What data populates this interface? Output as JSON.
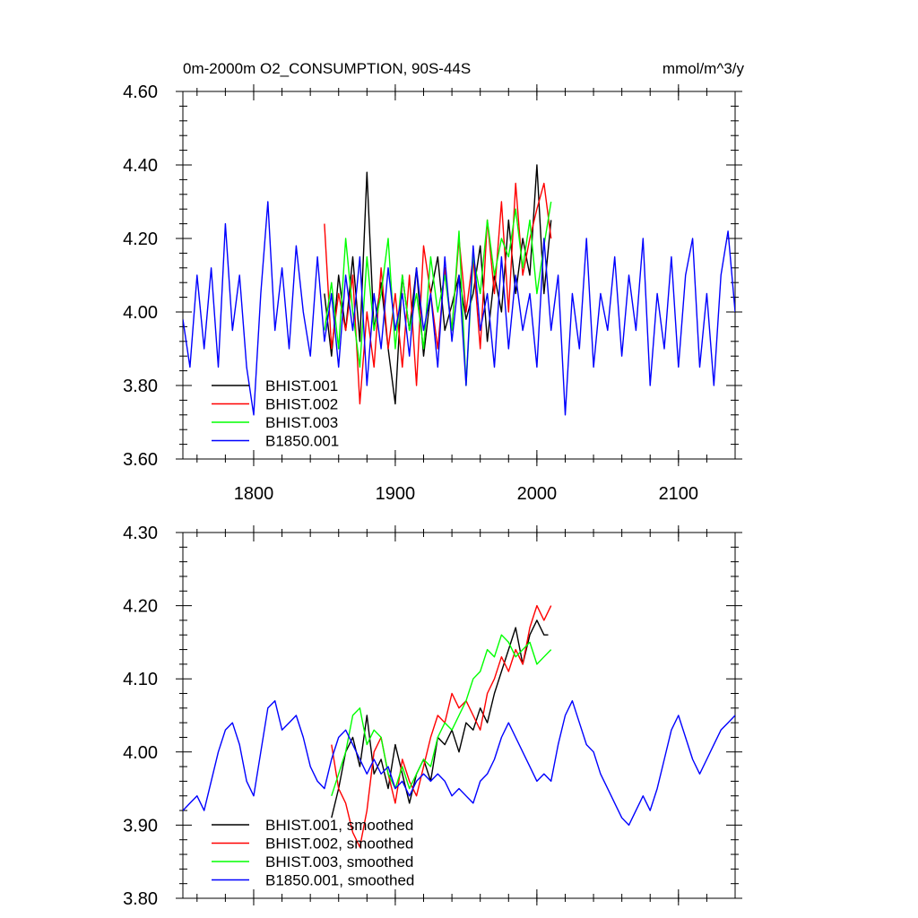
{
  "figure": {
    "title_left": "0m-2000m O2_CONSUMPTION, 90S-44S",
    "title_right": "mmol/m^3/y"
  },
  "chart_data": [
    {
      "type": "line",
      "title": "0m-2000m O2_CONSUMPTION, 90S-44S",
      "units": "mmol/m^3/y",
      "xlabel": "",
      "ylabel": "",
      "xlim": [
        1750,
        2140
      ],
      "ylim": [
        3.6,
        4.6
      ],
      "x_ticks": [
        1800,
        1900,
        2000,
        2100
      ],
      "y_ticks": [
        3.6,
        3.8,
        4.0,
        4.2,
        4.4,
        4.6
      ],
      "y_tick_labels": [
        "3.60",
        "3.80",
        "4.00",
        "4.20",
        "4.40",
        "4.60"
      ],
      "legend": "bottom-left",
      "grid": false,
      "series": [
        {
          "name": "BHIST.001",
          "color": "#000000",
          "x": [
            1850,
            1855,
            1860,
            1865,
            1870,
            1875,
            1880,
            1885,
            1890,
            1895,
            1900,
            1905,
            1910,
            1915,
            1920,
            1925,
            1930,
            1935,
            1940,
            1945,
            1950,
            1955,
            1960,
            1965,
            1970,
            1975,
            1980,
            1985,
            1990,
            1995,
            2000,
            2005,
            2010
          ],
          "y": [
            4.05,
            3.88,
            4.1,
            3.95,
            4.15,
            3.92,
            4.38,
            3.95,
            4.08,
            3.9,
            3.75,
            4.1,
            3.95,
            4.12,
            3.88,
            4.05,
            4.15,
            3.95,
            4.02,
            4.1,
            3.98,
            4.05,
            4.18,
            3.92,
            4.1,
            4.0,
            4.25,
            4.05,
            4.2,
            4.1,
            4.4,
            4.05,
            4.25
          ]
        },
        {
          "name": "BHIST.002",
          "color": "#ff0000",
          "x": [
            1850,
            1855,
            1860,
            1865,
            1870,
            1875,
            1880,
            1885,
            1890,
            1895,
            1900,
            1905,
            1910,
            1915,
            1920,
            1925,
            1930,
            1935,
            1940,
            1945,
            1950,
            1955,
            1960,
            1965,
            1970,
            1975,
            1980,
            1985,
            1990,
            1995,
            2000,
            2005,
            2010
          ],
          "y": [
            4.24,
            3.9,
            4.05,
            3.95,
            4.1,
            3.75,
            4.0,
            3.85,
            4.12,
            3.9,
            4.05,
            3.85,
            4.1,
            3.8,
            4.18,
            4.05,
            3.9,
            4.12,
            3.95,
            4.2,
            4.0,
            4.15,
            3.9,
            4.25,
            4.05,
            4.3,
            4.0,
            4.35,
            4.1,
            4.2,
            4.28,
            4.35,
            4.2
          ]
        },
        {
          "name": "BHIST.003",
          "color": "#00ff00",
          "x": [
            1850,
            1855,
            1860,
            1865,
            1870,
            1875,
            1880,
            1885,
            1890,
            1895,
            1900,
            1905,
            1910,
            1915,
            1920,
            1925,
            1930,
            1935,
            1940,
            1945,
            1950,
            1955,
            1960,
            1965,
            1970,
            1975,
            1980,
            1985,
            1990,
            1995,
            2000,
            2005,
            2010
          ],
          "y": [
            3.95,
            4.08,
            3.9,
            4.2,
            4.0,
            3.85,
            4.15,
            3.95,
            4.05,
            4.2,
            3.9,
            4.1,
            3.95,
            4.05,
            3.9,
            4.15,
            4.0,
            4.1,
            3.95,
            4.22,
            3.8,
            4.15,
            4.05,
            4.25,
            4.1,
            4.2,
            4.15,
            4.28,
            4.12,
            4.25,
            4.05,
            4.18,
            4.3
          ]
        },
        {
          "name": "B1850.001",
          "color": "#0000ff",
          "x": [
            1750,
            1755,
            1760,
            1765,
            1770,
            1775,
            1780,
            1785,
            1790,
            1795,
            1800,
            1805,
            1810,
            1815,
            1820,
            1825,
            1830,
            1835,
            1840,
            1845,
            1850,
            1855,
            1860,
            1865,
            1870,
            1875,
            1880,
            1885,
            1890,
            1895,
            1900,
            1905,
            1910,
            1915,
            1920,
            1925,
            1930,
            1935,
            1940,
            1945,
            1950,
            1955,
            1960,
            1965,
            1970,
            1975,
            1980,
            1985,
            1990,
            1995,
            2000,
            2005,
            2010,
            2015,
            2020,
            2025,
            2030,
            2035,
            2040,
            2045,
            2050,
            2055,
            2060,
            2065,
            2070,
            2075,
            2080,
            2085,
            2090,
            2095,
            2100,
            2105,
            2110,
            2115,
            2120,
            2125,
            2130,
            2135,
            2140
          ],
          "y": [
            3.98,
            3.85,
            4.1,
            3.9,
            4.12,
            3.85,
            4.24,
            3.95,
            4.1,
            3.85,
            3.72,
            4.05,
            4.3,
            3.95,
            4.12,
            3.9,
            4.18,
            4.0,
            3.88,
            4.15,
            3.92,
            4.05,
            3.85,
            4.1,
            3.95,
            4.15,
            3.8,
            4.05,
            3.9,
            4.12,
            3.95,
            4.05,
            3.88,
            4.12,
            3.95,
            4.05,
            3.85,
            4.15,
            3.92,
            4.1,
            3.8,
            4.18,
            3.95,
            4.05,
            3.85,
            4.15,
            3.9,
            4.1,
            3.95,
            4.05,
            3.85,
            4.2,
            3.95,
            4.1,
            3.72,
            4.05,
            3.9,
            4.2,
            3.85,
            4.05,
            3.95,
            4.15,
            3.88,
            4.1,
            3.95,
            4.2,
            3.8,
            4.05,
            3.9,
            4.15,
            3.85,
            4.1,
            4.2,
            3.85,
            4.05,
            3.8,
            4.1,
            4.22,
            4.0
          ]
        }
      ]
    },
    {
      "type": "line",
      "title": "",
      "xlabel": "",
      "ylabel": "",
      "xlim": [
        1750,
        2140
      ],
      "ylim": [
        3.8,
        4.3
      ],
      "x_ticks": [
        1800,
        1900,
        2000,
        2100
      ],
      "y_ticks": [
        3.8,
        3.9,
        4.0,
        4.1,
        4.2,
        4.3
      ],
      "y_tick_labels": [
        "3.80",
        "3.90",
        "4.00",
        "4.10",
        "4.20",
        "4.30"
      ],
      "legend": "bottom-left",
      "grid": false,
      "series": [
        {
          "name": "BHIST.001, smoothed",
          "color": "#000000",
          "x": [
            1855,
            1860,
            1865,
            1870,
            1875,
            1880,
            1885,
            1890,
            1895,
            1900,
            1905,
            1910,
            1915,
            1920,
            1925,
            1930,
            1935,
            1940,
            1945,
            1950,
            1955,
            1960,
            1965,
            1970,
            1975,
            1980,
            1985,
            1990,
            1995,
            2000,
            2005,
            2008
          ],
          "y": [
            3.91,
            3.95,
            4.0,
            4.02,
            3.98,
            4.05,
            3.97,
            3.99,
            3.95,
            4.01,
            3.97,
            3.93,
            3.97,
            3.99,
            3.96,
            4.02,
            4.01,
            4.03,
            4.0,
            4.04,
            4.03,
            4.06,
            4.04,
            4.08,
            4.11,
            4.14,
            4.17,
            4.12,
            4.16,
            4.18,
            4.16,
            4.16
          ]
        },
        {
          "name": "BHIST.002, smoothed",
          "color": "#ff0000",
          "x": [
            1855,
            1860,
            1865,
            1870,
            1875,
            1880,
            1885,
            1890,
            1895,
            1900,
            1905,
            1910,
            1915,
            1920,
            1925,
            1930,
            1935,
            1940,
            1945,
            1950,
            1955,
            1960,
            1965,
            1970,
            1975,
            1980,
            1985,
            1990,
            1995,
            2000,
            2005,
            2010
          ],
          "y": [
            4.01,
            3.95,
            3.93,
            3.89,
            3.87,
            3.92,
            4.0,
            4.02,
            3.97,
            3.93,
            3.99,
            3.96,
            3.94,
            3.98,
            4.02,
            4.05,
            4.04,
            4.08,
            4.06,
            4.07,
            4.05,
            4.03,
            4.08,
            4.1,
            4.13,
            4.11,
            4.14,
            4.12,
            4.17,
            4.2,
            4.18,
            4.2
          ]
        },
        {
          "name": "BHIST.003, smoothed",
          "color": "#00ff00",
          "x": [
            1855,
            1860,
            1865,
            1870,
            1875,
            1880,
            1885,
            1890,
            1895,
            1900,
            1905,
            1910,
            1915,
            1920,
            1925,
            1930,
            1935,
            1940,
            1945,
            1950,
            1955,
            1960,
            1965,
            1970,
            1975,
            1980,
            1985,
            1990,
            1995,
            2000,
            2005,
            2010
          ],
          "y": [
            3.94,
            3.97,
            4.0,
            4.05,
            4.06,
            4.01,
            4.03,
            4.02,
            3.97,
            3.95,
            3.98,
            3.95,
            3.97,
            3.99,
            3.98,
            4.02,
            4.04,
            4.03,
            4.05,
            4.07,
            4.1,
            4.11,
            4.14,
            4.13,
            4.16,
            4.15,
            4.13,
            4.14,
            4.15,
            4.12,
            4.13,
            4.14
          ]
        },
        {
          "name": "B1850.001, smoothed",
          "color": "#0000ff",
          "x": [
            1750,
            1755,
            1760,
            1765,
            1770,
            1775,
            1780,
            1785,
            1790,
            1795,
            1800,
            1805,
            1810,
            1815,
            1820,
            1825,
            1830,
            1835,
            1840,
            1845,
            1850,
            1855,
            1860,
            1865,
            1870,
            1875,
            1880,
            1885,
            1890,
            1895,
            1900,
            1905,
            1910,
            1915,
            1920,
            1925,
            1930,
            1935,
            1940,
            1945,
            1950,
            1955,
            1960,
            1965,
            1970,
            1975,
            1980,
            1985,
            1990,
            1995,
            2000,
            2005,
            2010,
            2015,
            2020,
            2025,
            2030,
            2035,
            2040,
            2045,
            2050,
            2055,
            2060,
            2065,
            2070,
            2075,
            2080,
            2085,
            2090,
            2095,
            2100,
            2105,
            2110,
            2115,
            2120,
            2125,
            2130,
            2135,
            2140
          ],
          "y": [
            3.92,
            3.93,
            3.94,
            3.92,
            3.96,
            4.0,
            4.03,
            4.04,
            4.01,
            3.96,
            3.94,
            4.0,
            4.06,
            4.07,
            4.03,
            4.04,
            4.05,
            4.02,
            3.98,
            3.96,
            3.95,
            3.99,
            4.02,
            4.03,
            4.01,
            3.99,
            3.97,
            3.99,
            3.97,
            3.98,
            3.95,
            3.96,
            3.94,
            3.96,
            3.97,
            3.96,
            3.97,
            3.96,
            3.94,
            3.95,
            3.94,
            3.93,
            3.96,
            3.97,
            3.99,
            4.02,
            4.04,
            4.02,
            4.0,
            3.98,
            3.96,
            3.97,
            3.96,
            4.01,
            4.05,
            4.07,
            4.04,
            4.01,
            4.0,
            3.97,
            3.95,
            3.93,
            3.91,
            3.9,
            3.92,
            3.94,
            3.92,
            3.95,
            3.99,
            4.03,
            4.05,
            4.02,
            3.99,
            3.97,
            3.99,
            4.01,
            4.03,
            4.04,
            4.05
          ]
        }
      ]
    }
  ]
}
